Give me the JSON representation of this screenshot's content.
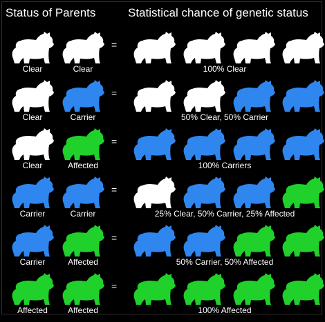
{
  "header": {
    "left": "Status of Parents",
    "right": "Statistical chance of genetic status"
  },
  "equals_sign": "=",
  "colors": {
    "Clear": "#ffffff",
    "Carrier": "#2f86ee",
    "Affected": "#1fd12a",
    "background": "#000000",
    "text": "#ffffff"
  },
  "rows": [
    {
      "parents": [
        "Clear",
        "Clear"
      ],
      "offspring": [
        "Clear",
        "Clear",
        "Clear",
        "Clear"
      ],
      "result": "100% Clear"
    },
    {
      "parents": [
        "Clear",
        "Carrier"
      ],
      "offspring": [
        "Clear",
        "Clear",
        "Carrier",
        "Carrier"
      ],
      "result": "50% Clear, 50% Carrier"
    },
    {
      "parents": [
        "Clear",
        "Affected"
      ],
      "offspring": [
        "Carrier",
        "Carrier",
        "Carrier",
        "Carrier"
      ],
      "result": "100% Carriers"
    },
    {
      "parents": [
        "Carrier",
        "Carrier"
      ],
      "offspring": [
        "Clear",
        "Carrier",
        "Carrier",
        "Affected"
      ],
      "result": "25% Clear, 50% Carrier, 25% Affected"
    },
    {
      "parents": [
        "Carrier",
        "Affected"
      ],
      "offspring": [
        "Carrier",
        "Carrier",
        "Affected",
        "Affected"
      ],
      "result": "50% Carrier, 50% Affected"
    },
    {
      "parents": [
        "Affected",
        "Affected"
      ],
      "offspring": [
        "Affected",
        "Affected",
        "Affected",
        "Affected"
      ],
      "result": "100% Affected"
    }
  ]
}
